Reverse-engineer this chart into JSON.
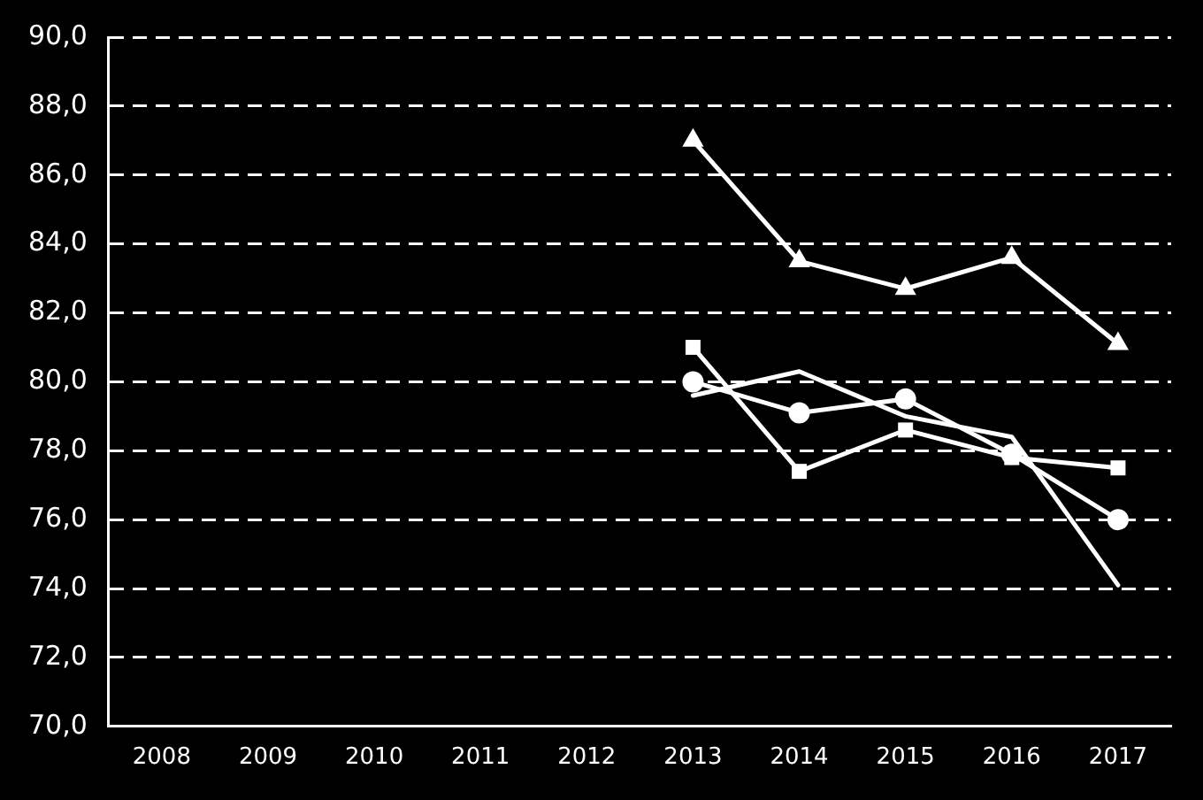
{
  "chart_data": {
    "type": "line",
    "categories": [
      "2008",
      "2009",
      "2010",
      "2011",
      "2012",
      "2013",
      "2014",
      "2015",
      "2016",
      "2017"
    ],
    "series": [
      {
        "color": "#ffffff",
        "marker": "triangle",
        "values": [
          null,
          null,
          null,
          null,
          null,
          87.0,
          83.5,
          82.7,
          83.6,
          81.1
        ]
      },
      {
        "color": "#ffffff",
        "marker": "square",
        "values": [
          null,
          null,
          null,
          null,
          null,
          81.0,
          77.4,
          78.6,
          77.8,
          77.5
        ]
      },
      {
        "color": "#ffffff",
        "marker": "circle",
        "values": [
          null,
          null,
          null,
          null,
          null,
          80.0,
          79.1,
          79.5,
          77.9,
          76.0
        ]
      },
      {
        "color": "#ffffff",
        "marker": "none",
        "values": [
          null,
          null,
          null,
          null,
          null,
          79.6,
          80.3,
          79.0,
          78.4,
          74.1
        ]
      }
    ],
    "ylim": [
      70,
      90
    ],
    "yticks": [
      {
        "value": 70,
        "label": "70,0"
      },
      {
        "value": 72,
        "label": "72,0"
      },
      {
        "value": 74,
        "label": "74,0"
      },
      {
        "value": 76,
        "label": "76,0"
      },
      {
        "value": 78,
        "label": "78,0"
      },
      {
        "value": 80,
        "label": "80,0"
      },
      {
        "value": 82,
        "label": "82,0"
      },
      {
        "value": 84,
        "label": "84,0"
      },
      {
        "value": 86,
        "label": "86,0"
      },
      {
        "value": 88,
        "label": "88,0"
      },
      {
        "value": 90,
        "label": "90,0"
      }
    ],
    "grid": "y",
    "legend": false,
    "line_style": "solid"
  }
}
